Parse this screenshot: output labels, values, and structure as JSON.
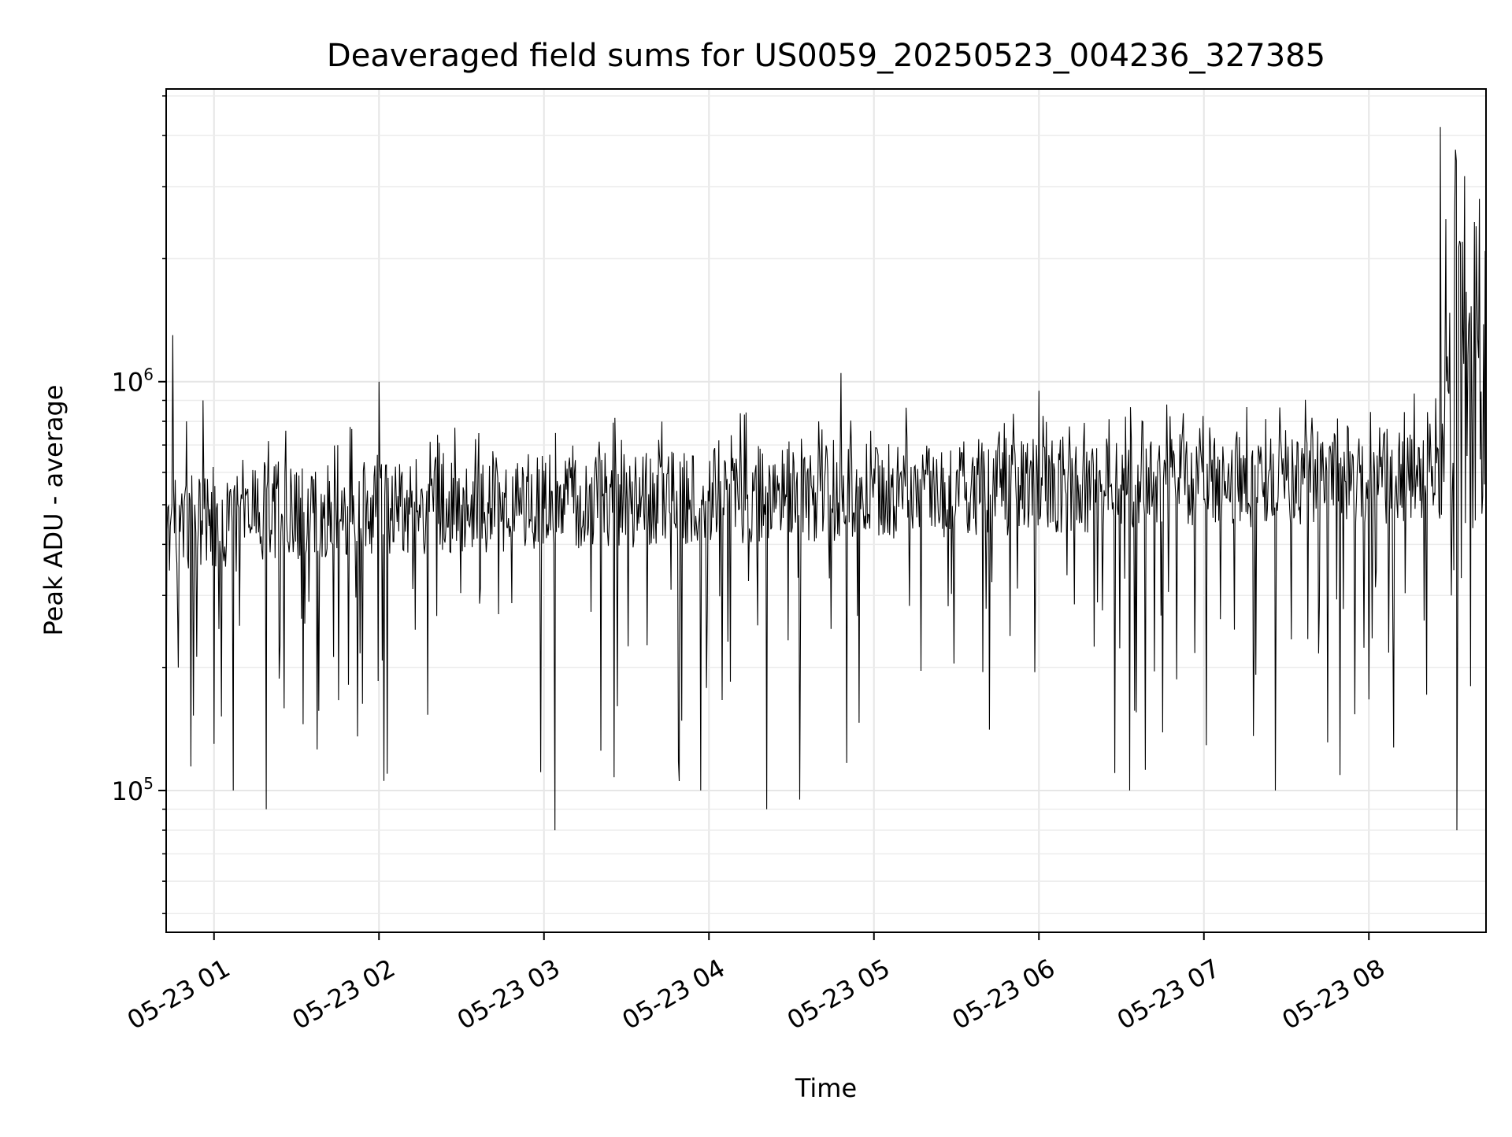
{
  "chart_data": {
    "type": "line",
    "title": "Deaveraged field sums for US0059_20250523_004236_327385",
    "xlabel": "Time",
    "ylabel": "Peak ADU - average",
    "x_scale": "time",
    "y_scale": "log",
    "xlim": [
      "2025-05-23T00:42:36",
      "2025-05-23T08:42:36"
    ],
    "ylim": [
      45000,
      5200000
    ],
    "x_ticks": [
      {
        "value": "2025-05-23T01:00:00",
        "label": "05-23 01"
      },
      {
        "value": "2025-05-23T02:00:00",
        "label": "05-23 02"
      },
      {
        "value": "2025-05-23T03:00:00",
        "label": "05-23 03"
      },
      {
        "value": "2025-05-23T04:00:00",
        "label": "05-23 04"
      },
      {
        "value": "2025-05-23T05:00:00",
        "label": "05-23 05"
      },
      {
        "value": "2025-05-23T06:00:00",
        "label": "05-23 06"
      },
      {
        "value": "2025-05-23T07:00:00",
        "label": "05-23 07"
      },
      {
        "value": "2025-05-23T08:00:00",
        "label": "05-23 08"
      }
    ],
    "y_ticks": [
      {
        "value": 100000,
        "base": "10",
        "exp": "5"
      },
      {
        "value": 1000000,
        "base": "10",
        "exp": "6"
      }
    ],
    "grid": true,
    "line_color": "#000000",
    "series": [
      {
        "x": [
          "2025-05-23T00:42:36",
          "2025-05-23T00:45:00",
          "2025-05-23T00:47:00",
          "2025-05-23T00:50:00",
          "2025-05-23T00:53:00",
          "2025-05-23T00:56:00",
          "2025-05-23T01:00:00",
          "2025-05-23T01:07:00",
          "2025-05-23T01:19:00",
          "2025-05-23T01:30:00",
          "2025-05-23T01:45:00",
          "2025-05-23T02:00:00",
          "2025-05-23T02:30:00",
          "2025-05-23T03:04:00",
          "2025-05-23T03:30:00",
          "2025-05-23T03:57:00",
          "2025-05-23T04:21:00",
          "2025-05-23T04:33:00",
          "2025-05-23T04:48:00",
          "2025-05-23T05:30:00",
          "2025-05-23T06:00:00",
          "2025-05-23T06:12:00",
          "2025-05-23T06:33:00",
          "2025-05-23T07:15:00",
          "2025-05-23T07:26:00",
          "2025-05-23T07:56:00",
          "2025-05-23T08:22:00",
          "2025-05-23T08:26:00",
          "2025-05-23T08:28:00",
          "2025-05-23T08:30:00",
          "2025-05-23T08:32:00",
          "2025-05-23T08:34:00",
          "2025-05-23T08:37:00",
          "2025-05-23T08:39:00",
          "2025-05-23T08:42:36"
        ],
        "y": [
          120000,
          1300000,
          200000,
          800000,
          500000,
          900000,
          130000,
          100000,
          90000,
          600000,
          700000,
          1000000,
          500000,
          80000,
          600000,
          100000,
          90000,
          95000,
          1050000,
          600000,
          950000,
          650000,
          100000,
          650000,
          100000,
          650000,
          600000,
          4200000,
          2500000,
          300000,
          80000,
          2200000,
          180000,
          2400000,
          1600000
        ]
      }
    ]
  }
}
